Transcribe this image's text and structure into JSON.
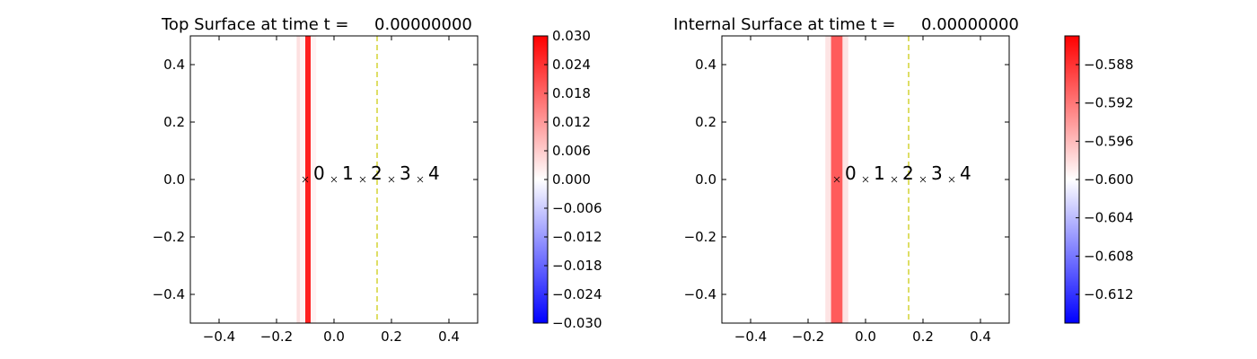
{
  "chart_data": [
    {
      "type": "heatmap",
      "title": "Top Surface at time t =     0.00000000",
      "xlim": [
        -0.5,
        0.5
      ],
      "ylim": [
        -0.5,
        0.5
      ],
      "x_ticks": [
        "−0.4",
        "−0.2",
        "0.0",
        "0.2",
        "0.4"
      ],
      "x_tick_values": [
        -0.4,
        -0.2,
        0.0,
        0.2,
        0.4
      ],
      "y_ticks": [
        "0.4",
        "0.2",
        "0.0",
        "−0.2",
        "−0.4"
      ],
      "y_tick_values": [
        0.4,
        0.2,
        0.0,
        -0.2,
        -0.4
      ],
      "field_bands": [
        {
          "x0": -0.13,
          "x1": -0.118,
          "color": "#fde0e0"
        },
        {
          "x0": -0.118,
          "x1": -0.1,
          "color": "#fff3f3"
        },
        {
          "x0": -0.1,
          "x1": -0.081,
          "color": "#ff2020"
        },
        {
          "x0": -0.081,
          "x1": -0.062,
          "color": "#fff3f3"
        }
      ],
      "dashed_line_x": 0.15,
      "dashed_line_color": "#c8c800",
      "markers": [
        {
          "label": "0",
          "x": -0.1,
          "y": 0.0
        },
        {
          "label": "1",
          "x": 0.0,
          "y": 0.0
        },
        {
          "label": "2",
          "x": 0.1,
          "y": 0.0
        },
        {
          "label": "3",
          "x": 0.2,
          "y": 0.0
        },
        {
          "label": "4",
          "x": 0.3,
          "y": 0.0
        }
      ],
      "colorbar": {
        "min": -0.03,
        "max": 0.03,
        "colors": [
          "#0000ff",
          "#ffffff",
          "#ff0000"
        ],
        "tick_labels": [
          "0.030",
          "0.024",
          "0.018",
          "0.012",
          "0.006",
          "0.000",
          "−0.006",
          "−0.012",
          "−0.018",
          "−0.024",
          "−0.030"
        ],
        "tick_values": [
          0.03,
          0.024,
          0.018,
          0.012,
          0.006,
          0.0,
          -0.006,
          -0.012,
          -0.018,
          -0.024,
          -0.03
        ]
      }
    },
    {
      "type": "heatmap",
      "title": "Internal Surface at time t =     0.00000000",
      "xlim": [
        -0.5,
        0.5
      ],
      "ylim": [
        -0.5,
        0.5
      ],
      "x_ticks": [
        "−0.4",
        "−0.2",
        "0.0",
        "0.2",
        "0.4"
      ],
      "x_tick_values": [
        -0.4,
        -0.2,
        0.0,
        0.2,
        0.4
      ],
      "y_ticks": [
        "0.4",
        "0.2",
        "0.0",
        "−0.2",
        "−0.4"
      ],
      "y_tick_values": [
        0.4,
        0.2,
        0.0,
        -0.2,
        -0.4
      ],
      "field_bands": [
        {
          "x0": -0.14,
          "x1": -0.12,
          "color": "#fde4e4"
        },
        {
          "x0": -0.12,
          "x1": -0.08,
          "color": "#ff5b5b"
        },
        {
          "x0": -0.08,
          "x1": -0.06,
          "color": "#fde4e4"
        }
      ],
      "dashed_line_x": 0.15,
      "dashed_line_color": "#c8c800",
      "markers": [
        {
          "label": "0",
          "x": -0.1,
          "y": 0.0
        },
        {
          "label": "1",
          "x": 0.0,
          "y": 0.0
        },
        {
          "label": "2",
          "x": 0.1,
          "y": 0.0
        },
        {
          "label": "3",
          "x": 0.2,
          "y": 0.0
        },
        {
          "label": "4",
          "x": 0.3,
          "y": 0.0
        }
      ],
      "colorbar": {
        "min": -0.615,
        "max": -0.585,
        "colors": [
          "#0000ff",
          "#ffffff",
          "#ff0000"
        ],
        "tick_labels": [
          "−0.588",
          "−0.592",
          "−0.596",
          "−0.600",
          "−0.604",
          "−0.608",
          "−0.612"
        ],
        "tick_values": [
          -0.588,
          -0.592,
          -0.596,
          -0.6,
          -0.604,
          -0.608,
          -0.612
        ]
      }
    }
  ]
}
